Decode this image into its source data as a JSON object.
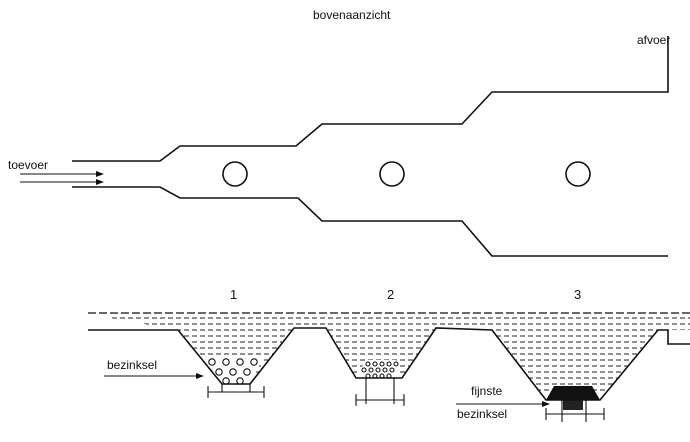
{
  "top_view": {
    "title": "bovenaanzicht",
    "inlet_label": "toevoer",
    "outlet_label": "afvoer"
  },
  "section": {
    "basin_numbers": [
      "1",
      "2",
      "3"
    ],
    "sediment_label": "bezinksel",
    "finest_label_line1": "fijnste",
    "finest_label_line2": "bezinksel"
  }
}
